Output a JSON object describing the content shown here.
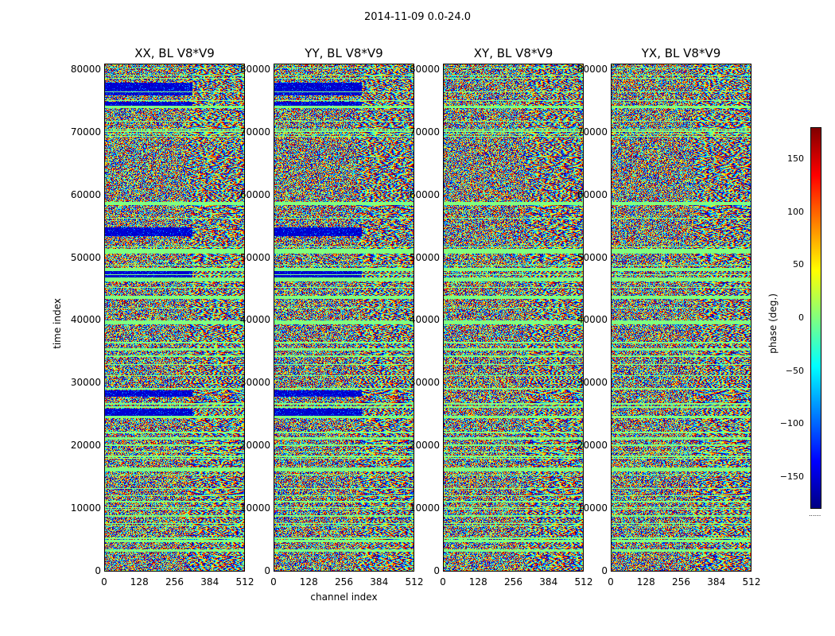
{
  "figure": {
    "suptitle": "2014-11-09 0.0-24.0"
  },
  "chart_data": {
    "type": "heatmap",
    "panels": [
      {
        "title": "XX, BL V8*V9",
        "pol": "XX"
      },
      {
        "title": "YY, BL V8*V9",
        "pol": "YY"
      },
      {
        "title": "XY, BL V8*V9",
        "pol": "XY"
      },
      {
        "title": "YX, BL V8*V9",
        "pol": "YX"
      }
    ],
    "xlabel": "channel index",
    "ylabel": "time index",
    "xlim": [
      0,
      512
    ],
    "ylim": [
      0,
      81000
    ],
    "xticks": [
      0,
      128,
      256,
      384,
      512
    ],
    "yticks": [
      0,
      10000,
      20000,
      30000,
      40000,
      50000,
      60000,
      70000,
      80000
    ],
    "colorbar": {
      "label": "phase (deg.)",
      "range": [
        -180,
        180
      ],
      "ticks": [
        -150,
        -100,
        -50,
        0,
        50,
        100,
        150
      ],
      "cmap": "jet",
      "extra_label": "......"
    }
  }
}
